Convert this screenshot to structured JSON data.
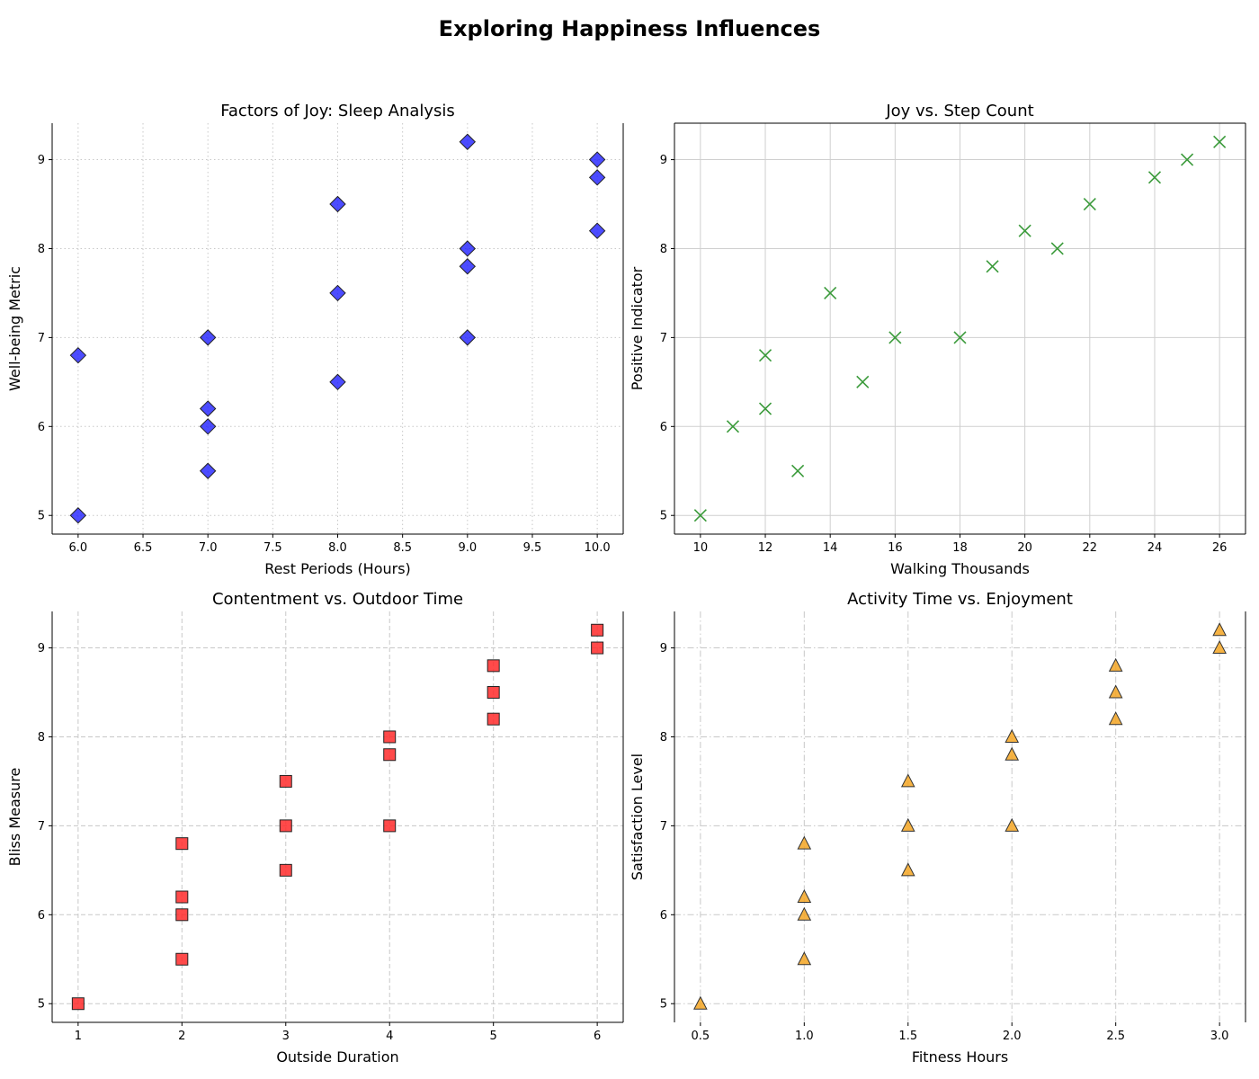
{
  "figure": {
    "title": "Exploring Happiness Influences"
  },
  "chart_data": [
    {
      "type": "scatter",
      "title": "Factors of Joy: Sleep Analysis",
      "xlabel": "Rest Periods (Hours)",
      "ylabel": "Well-being Metric",
      "xlim": [
        5.8,
        10.2
      ],
      "ylim": [
        4.79,
        9.41
      ],
      "xticks": [
        6.0,
        6.5,
        7.0,
        7.5,
        8.0,
        8.5,
        9.0,
        9.5,
        10.0
      ],
      "xtick_labels": [
        "6.0",
        "6.5",
        "7.0",
        "7.5",
        "8.0",
        "8.5",
        "9.0",
        "9.5",
        "10.0"
      ],
      "yticks": [
        5,
        6,
        7,
        8,
        9
      ],
      "ytick_labels": [
        "5",
        "6",
        "7",
        "8",
        "9"
      ],
      "grid": "dotted",
      "marker": "diamond",
      "color": "#1a1aff",
      "spines": "left-bottom-right",
      "points": [
        {
          "x": 7,
          "y": 7.0
        },
        {
          "x": 8,
          "y": 8.5
        },
        {
          "x": 6,
          "y": 6.8
        },
        {
          "x": 9,
          "y": 9.2
        },
        {
          "x": 7,
          "y": 6.2
        },
        {
          "x": 8,
          "y": 7.5
        },
        {
          "x": 10,
          "y": 9.0
        },
        {
          "x": 9,
          "y": 8.0
        },
        {
          "x": 7,
          "y": 5.5
        },
        {
          "x": 8,
          "y": 6.5
        },
        {
          "x": 9,
          "y": 7.8
        },
        {
          "x": 7,
          "y": 6.0
        },
        {
          "x": 10,
          "y": 8.8
        },
        {
          "x": 6,
          "y": 5.0
        },
        {
          "x": 9,
          "y": 7.0
        },
        {
          "x": 10,
          "y": 8.2
        }
      ]
    },
    {
      "type": "scatter",
      "title": "Joy vs. Step Count",
      "xlabel": "Walking Thousands",
      "ylabel": "Positive Indicator",
      "xlim": [
        9.2,
        26.8
      ],
      "ylim": [
        4.79,
        9.41
      ],
      "xticks": [
        10,
        12,
        14,
        16,
        18,
        20,
        22,
        24,
        26
      ],
      "xtick_labels": [
        "10",
        "12",
        "14",
        "16",
        "18",
        "20",
        "22",
        "24",
        "26"
      ],
      "yticks": [
        5,
        6,
        7,
        8,
        9
      ],
      "ytick_labels": [
        "5",
        "6",
        "7",
        "8",
        "9"
      ],
      "grid": "solid",
      "marker": "x",
      "color": "#3a9a3a",
      "spines": "all",
      "points": [
        {
          "x": 10,
          "y": 5.0
        },
        {
          "x": 11,
          "y": 6.0
        },
        {
          "x": 12,
          "y": 6.8
        },
        {
          "x": 12,
          "y": 6.2
        },
        {
          "x": 13,
          "y": 5.5
        },
        {
          "x": 14,
          "y": 7.5
        },
        {
          "x": 15,
          "y": 6.5
        },
        {
          "x": 16,
          "y": 7.0
        },
        {
          "x": 18,
          "y": 7.0
        },
        {
          "x": 19,
          "y": 7.8
        },
        {
          "x": 20,
          "y": 8.2
        },
        {
          "x": 21,
          "y": 8.0
        },
        {
          "x": 22,
          "y": 8.5
        },
        {
          "x": 24,
          "y": 8.8
        },
        {
          "x": 25,
          "y": 9.0
        },
        {
          "x": 26,
          "y": 9.2
        }
      ]
    },
    {
      "type": "scatter",
      "title": "Contentment vs. Outdoor Time",
      "xlabel": "Outside Duration",
      "ylabel": "Bliss Measure",
      "xlim": [
        0.75,
        6.25
      ],
      "ylim": [
        4.79,
        9.41
      ],
      "xticks": [
        1,
        2,
        3,
        4,
        5,
        6
      ],
      "xtick_labels": [
        "1",
        "2",
        "3",
        "4",
        "5",
        "6"
      ],
      "yticks": [
        5,
        6,
        7,
        8,
        9
      ],
      "ytick_labels": [
        "5",
        "6",
        "7",
        "8",
        "9"
      ],
      "grid": "dashed",
      "marker": "square",
      "color": "#ff2a2a",
      "spines": "left-bottom-right",
      "points": [
        {
          "x": 1,
          "y": 5.0
        },
        {
          "x": 2,
          "y": 6.8
        },
        {
          "x": 2,
          "y": 6.2
        },
        {
          "x": 2,
          "y": 6.0
        },
        {
          "x": 2,
          "y": 5.5
        },
        {
          "x": 3,
          "y": 7.5
        },
        {
          "x": 3,
          "y": 7.0
        },
        {
          "x": 3,
          "y": 6.5
        },
        {
          "x": 4,
          "y": 8.0
        },
        {
          "x": 4,
          "y": 7.8
        },
        {
          "x": 4,
          "y": 7.0
        },
        {
          "x": 5,
          "y": 8.8
        },
        {
          "x": 5,
          "y": 8.5
        },
        {
          "x": 5,
          "y": 8.2
        },
        {
          "x": 6,
          "y": 9.2
        },
        {
          "x": 6,
          "y": 9.0
        }
      ]
    },
    {
      "type": "scatter",
      "title": "Activity Time vs. Enjoyment",
      "xlabel": "Fitness Hours",
      "ylabel": "Satisfaction Level",
      "xlim": [
        0.375,
        3.125
      ],
      "ylim": [
        4.79,
        9.41
      ],
      "xticks": [
        0.5,
        1.0,
        1.5,
        2.0,
        2.5,
        3.0
      ],
      "xtick_labels": [
        "0.5",
        "1.0",
        "1.5",
        "2.0",
        "2.5",
        "3.0"
      ],
      "yticks": [
        5,
        6,
        7,
        8,
        9
      ],
      "ytick_labels": [
        "5",
        "6",
        "7",
        "8",
        "9"
      ],
      "grid": "dashdot",
      "marker": "triangle",
      "color": "#f5a623",
      "spines": "left-right",
      "points": [
        {
          "x": 0.5,
          "y": 5.0
        },
        {
          "x": 1.0,
          "y": 6.8
        },
        {
          "x": 1.0,
          "y": 6.2
        },
        {
          "x": 1.0,
          "y": 6.0
        },
        {
          "x": 1.0,
          "y": 5.5
        },
        {
          "x": 1.5,
          "y": 7.5
        },
        {
          "x": 1.5,
          "y": 7.0
        },
        {
          "x": 1.5,
          "y": 6.5
        },
        {
          "x": 2.0,
          "y": 8.0
        },
        {
          "x": 2.0,
          "y": 7.8
        },
        {
          "x": 2.0,
          "y": 7.0
        },
        {
          "x": 2.5,
          "y": 8.8
        },
        {
          "x": 2.5,
          "y": 8.5
        },
        {
          "x": 2.5,
          "y": 8.2
        },
        {
          "x": 3.0,
          "y": 9.2
        },
        {
          "x": 3.0,
          "y": 9.0
        }
      ]
    }
  ]
}
